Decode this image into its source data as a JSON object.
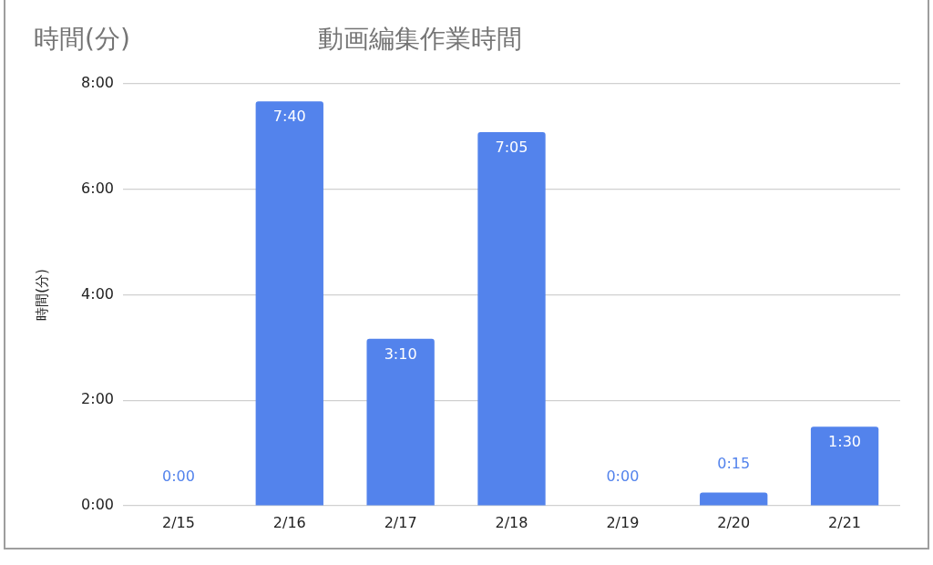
{
  "chart_data": {
    "type": "bar",
    "title": "動画編集作業時間",
    "ylabel": "時間(分)",
    "annotations": [
      "時間(分)"
    ],
    "categories": [
      "2/15",
      "2/16",
      "2/17",
      "2/18",
      "2/19",
      "2/20",
      "2/21"
    ],
    "values": [
      0,
      7.667,
      3.167,
      7.083,
      0,
      0.25,
      1.5
    ],
    "color": "#5383ec",
    "value_labels": [
      "0:00",
      "7:40",
      "3:10",
      "7:05",
      "0:00",
      "0:15",
      "1:30"
    ],
    "ylim": [
      0,
      8
    ],
    "yticks": [
      {
        "value": 0,
        "label": "0:00"
      },
      {
        "value": 2,
        "label": "2:00"
      },
      {
        "value": 4,
        "label": "4:00"
      },
      {
        "value": 6,
        "label": "6:00"
      },
      {
        "value": 8,
        "label": "8:00"
      }
    ],
    "grid": "y",
    "legend": false
  }
}
